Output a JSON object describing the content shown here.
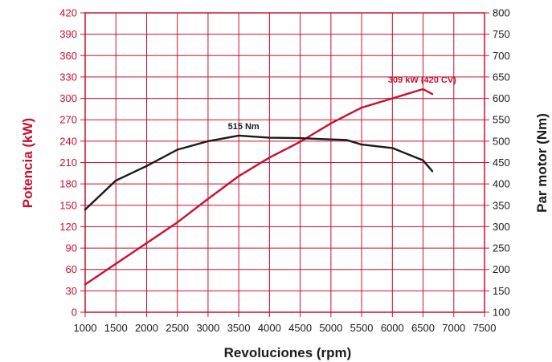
{
  "chart_data": {
    "type": "line",
    "xlabel": "Revoluciones (rpm)",
    "ylabel_left": "Potencia (kW)",
    "ylabel_right": "Par motor (Nm)",
    "x_ticks": [
      1000,
      1500,
      2000,
      2500,
      3000,
      3500,
      4000,
      4500,
      5000,
      5500,
      6000,
      6500,
      7000,
      7500
    ],
    "y_left_ticks": [
      0,
      30,
      60,
      90,
      120,
      150,
      180,
      210,
      240,
      270,
      300,
      330,
      360,
      390,
      420
    ],
    "y_right_ticks": [
      100,
      150,
      200,
      250,
      300,
      350,
      400,
      450,
      500,
      550,
      600,
      650,
      700,
      750,
      800
    ],
    "xlim": [
      1000,
      7500
    ],
    "ylim_left": [
      0,
      420
    ],
    "ylim_right": [
      100,
      800
    ],
    "grid": true,
    "colors": {
      "power": "#c8102e",
      "torque": "#1a1a1a",
      "grid": "#c8102e"
    },
    "series": [
      {
        "key": "power",
        "axis": "left",
        "x": [
          1000,
          1500,
          2000,
          2500,
          3000,
          3500,
          4000,
          4500,
          5000,
          5500,
          6000,
          6500,
          6650
        ],
        "values": [
          39,
          68,
          97,
          126,
          159,
          191,
          217,
          239,
          265,
          287,
          300,
          313,
          306
        ]
      },
      {
        "key": "torque",
        "axis": "right",
        "x": [
          1000,
          1500,
          2000,
          2500,
          3000,
          3500,
          4000,
          4500,
          5000,
          5250,
          5500,
          6000,
          6500,
          6650
        ],
        "values": [
          340,
          408,
          442,
          480,
          500,
          513,
          508,
          507,
          504,
          503,
          492,
          484,
          455,
          430
        ]
      }
    ],
    "annotations": [
      {
        "text": "515 Nm",
        "series": "torque",
        "x": 3500,
        "y": 513
      },
      {
        "text": "309 kW (420 CV)",
        "series": "power",
        "x": 6550,
        "y": 313
      }
    ]
  }
}
